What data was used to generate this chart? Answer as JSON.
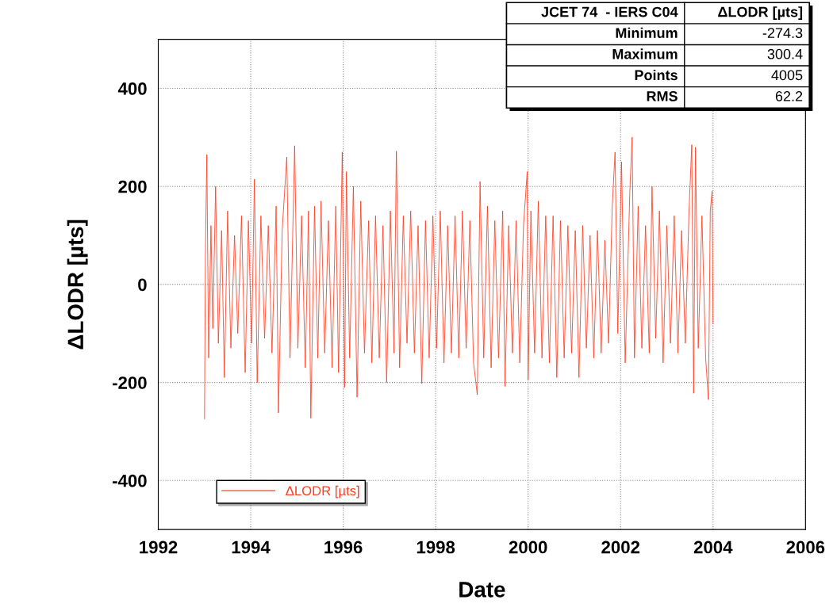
{
  "chart_data": {
    "type": "line",
    "xlabel": "Date",
    "ylabel": "ΔLODR [µts]",
    "xlim": [
      1992,
      2006
    ],
    "xticks": [
      1992,
      1994,
      1996,
      1998,
      2000,
      2002,
      2004,
      2006
    ],
    "ylim": [
      -500,
      500
    ],
    "yticks": [
      -400,
      -200,
      0,
      200,
      400
    ],
    "grid": true,
    "legend": "bottom left",
    "marker": "none",
    "line_style": "solid",
    "annotations": [
      "JCET 74  - IERS C04",
      "ΔLODR [µts]",
      "Minimum",
      "-274.3",
      "Maximum",
      "300.4",
      "Points",
      "4005",
      "RMS",
      "62.2"
    ],
    "series": [
      {
        "name": "ΔLODR [µts]",
        "color": "#ff3b1f",
        "x": [
          1993.0,
          1993.02,
          1993.05,
          1993.09,
          1993.14,
          1993.18,
          1993.24,
          1993.3,
          1993.37,
          1993.43,
          1993.5,
          1993.57,
          1993.65,
          1993.72,
          1993.8,
          1993.88,
          1993.95,
          1994.02,
          1994.08,
          1994.14,
          1994.22,
          1994.3,
          1994.38,
          1994.46,
          1994.55,
          1994.6,
          1994.68,
          1994.78,
          1994.85,
          1994.95,
          1995.02,
          1995.1,
          1995.18,
          1995.25,
          1995.3,
          1995.38,
          1995.45,
          1995.52,
          1995.6,
          1995.68,
          1995.76,
          1995.84,
          1995.9,
          1995.98,
          1996.03,
          1996.07,
          1996.14,
          1996.22,
          1996.3,
          1996.38,
          1996.46,
          1996.55,
          1996.62,
          1996.7,
          1996.78,
          1996.86,
          1996.94,
          1997.02,
          1997.1,
          1997.15,
          1997.22,
          1997.3,
          1997.38,
          1997.46,
          1997.54,
          1997.62,
          1997.7,
          1997.78,
          1997.86,
          1997.94,
          1998.02,
          1998.1,
          1998.18,
          1998.26,
          1998.34,
          1998.42,
          1998.5,
          1998.58,
          1998.66,
          1998.74,
          1998.82,
          1998.9,
          1998.96,
          1999.04,
          1999.12,
          1999.2,
          1999.28,
          1999.36,
          1999.45,
          1999.5,
          1999.58,
          1999.66,
          1999.74,
          1999.82,
          1999.9,
          1999.98,
          2000.0,
          2000.06,
          2000.14,
          2000.22,
          2000.3,
          2000.38,
          2000.46,
          2000.54,
          2000.62,
          2000.7,
          2000.78,
          2000.86,
          2000.94,
          2001.02,
          2001.1,
          2001.18,
          2001.26,
          2001.34,
          2001.42,
          2001.5,
          2001.58,
          2001.66,
          2001.74,
          2001.82,
          2001.88,
          2001.94,
          2002.02,
          2002.1,
          2002.2,
          2002.25,
          2002.3,
          2002.38,
          2002.46,
          2002.54,
          2002.62,
          2002.68,
          2002.76,
          2002.84,
          2002.92,
          2003.0,
          2003.08,
          2003.16,
          2003.24,
          2003.32,
          2003.4,
          2003.48,
          2003.54,
          2003.58,
          2003.62,
          2003.68,
          2003.76,
          2003.84,
          2003.9,
          2003.94,
          2003.98,
          2004.0
        ],
        "values": [
          -274.3,
          60,
          265,
          -150,
          120,
          -90,
          200,
          -120,
          110,
          -190,
          150,
          -130,
          100,
          -100,
          140,
          -180,
          130,
          -120,
          215,
          -200,
          140,
          -110,
          120,
          -140,
          160,
          -262,
          110,
          260,
          -150,
          283,
          -130,
          140,
          -170,
          150,
          -273,
          160,
          -150,
          170,
          -140,
          130,
          -170,
          160,
          -180,
          270,
          -210,
          230,
          -150,
          200,
          -230,
          170,
          -140,
          130,
          -160,
          140,
          -150,
          120,
          -200,
          150,
          -140,
          272,
          -170,
          140,
          -120,
          150,
          -140,
          120,
          -202,
          130,
          -150,
          140,
          -130,
          150,
          -160,
          120,
          -140,
          140,
          -150,
          150,
          -130,
          130,
          -160,
          -225,
          210,
          -150,
          160,
          -170,
          130,
          -150,
          150,
          -208,
          120,
          -140,
          130,
          -160,
          120,
          230,
          -195,
          150,
          -140,
          170,
          -150,
          140,
          -160,
          140,
          -190,
          130,
          -150,
          120,
          -140,
          110,
          -190,
          120,
          -130,
          100,
          -150,
          110,
          -140,
          90,
          -120,
          160,
          270,
          -100,
          250,
          -160,
          190,
          300.4,
          -150,
          160,
          -130,
          120,
          -140,
          200,
          -110,
          150,
          -160,
          120,
          -120,
          140,
          -140,
          110,
          -120,
          150,
          285,
          -222,
          280,
          -130,
          140,
          -150,
          -235,
          150,
          190,
          -80
        ]
      }
    ]
  }
}
